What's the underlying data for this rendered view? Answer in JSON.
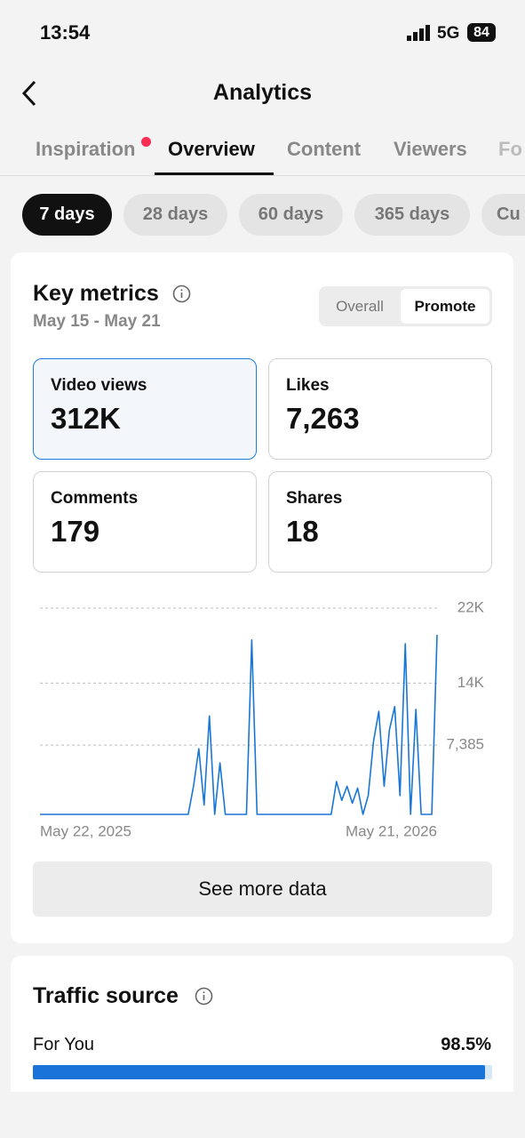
{
  "status_bar": {
    "time": "13:54",
    "network": "5G",
    "battery": "84"
  },
  "header": {
    "title": "Analytics"
  },
  "tabs": [
    "Inspiration",
    "Overview",
    "Content",
    "Viewers",
    "Fo"
  ],
  "ranges": [
    "7 days",
    "28 days",
    "60 days",
    "365 days",
    "Cu"
  ],
  "key_metrics": {
    "title": "Key metrics",
    "date_range": "May 15 - May 21",
    "toggle": [
      "Overall",
      "Promote"
    ],
    "cards": [
      {
        "label": "Video views",
        "value": "312K"
      },
      {
        "label": "Likes",
        "value": "7,263"
      },
      {
        "label": "Comments",
        "value": "179"
      },
      {
        "label": "Shares",
        "value": "18"
      }
    ],
    "button": "See more data"
  },
  "chart_data": {
    "type": "line",
    "categories": [
      "May 22, 2025",
      null,
      null,
      null,
      null,
      null,
      null,
      null,
      null,
      null,
      null,
      null,
      null,
      null,
      null,
      null,
      null,
      null,
      null,
      null,
      null,
      null,
      null,
      null,
      null,
      null,
      null,
      null,
      null,
      null,
      null,
      null,
      null,
      null,
      null,
      null,
      null,
      null,
      null,
      null,
      null,
      null,
      null,
      null,
      null,
      null,
      null,
      null,
      null,
      null,
      null,
      null,
      null,
      null,
      null,
      null,
      null,
      null,
      null,
      null,
      null,
      null,
      null,
      null,
      null,
      null,
      null,
      null,
      null,
      null,
      null,
      null,
      null,
      null,
      null,
      "May 21, 2026"
    ],
    "series": [
      {
        "color": "#1877d6",
        "values": [
          0,
          0,
          0,
          0,
          0,
          0,
          0,
          0,
          0,
          0,
          0,
          0,
          0,
          0,
          0,
          0,
          0,
          0,
          0,
          0,
          0,
          0,
          0,
          0,
          0,
          0,
          0,
          0,
          0,
          3000,
          7000,
          1000,
          10500,
          0,
          5500,
          0,
          0,
          0,
          0,
          0,
          18600,
          0,
          0,
          0,
          0,
          0,
          0,
          0,
          0,
          0,
          0,
          0,
          0,
          0,
          0,
          0,
          3500,
          1500,
          3000,
          1200,
          2800,
          0,
          2000,
          7800,
          11000,
          3000,
          9000,
          11500,
          2000,
          18200,
          0,
          11200,
          0,
          0,
          0,
          19150
        ]
      }
    ],
    "ylim": [
      0,
      22000
    ],
    "yticks": [
      {
        "value": 7385,
        "label": "7,385"
      },
      {
        "value": 14000,
        "label": "14K"
      },
      {
        "value": 22000,
        "label": "22K"
      }
    ],
    "grid": true
  },
  "traffic_source": {
    "title": "Traffic source",
    "items": [
      {
        "label": "For You",
        "value": 98.5,
        "value_label": "98.5%"
      }
    ]
  }
}
